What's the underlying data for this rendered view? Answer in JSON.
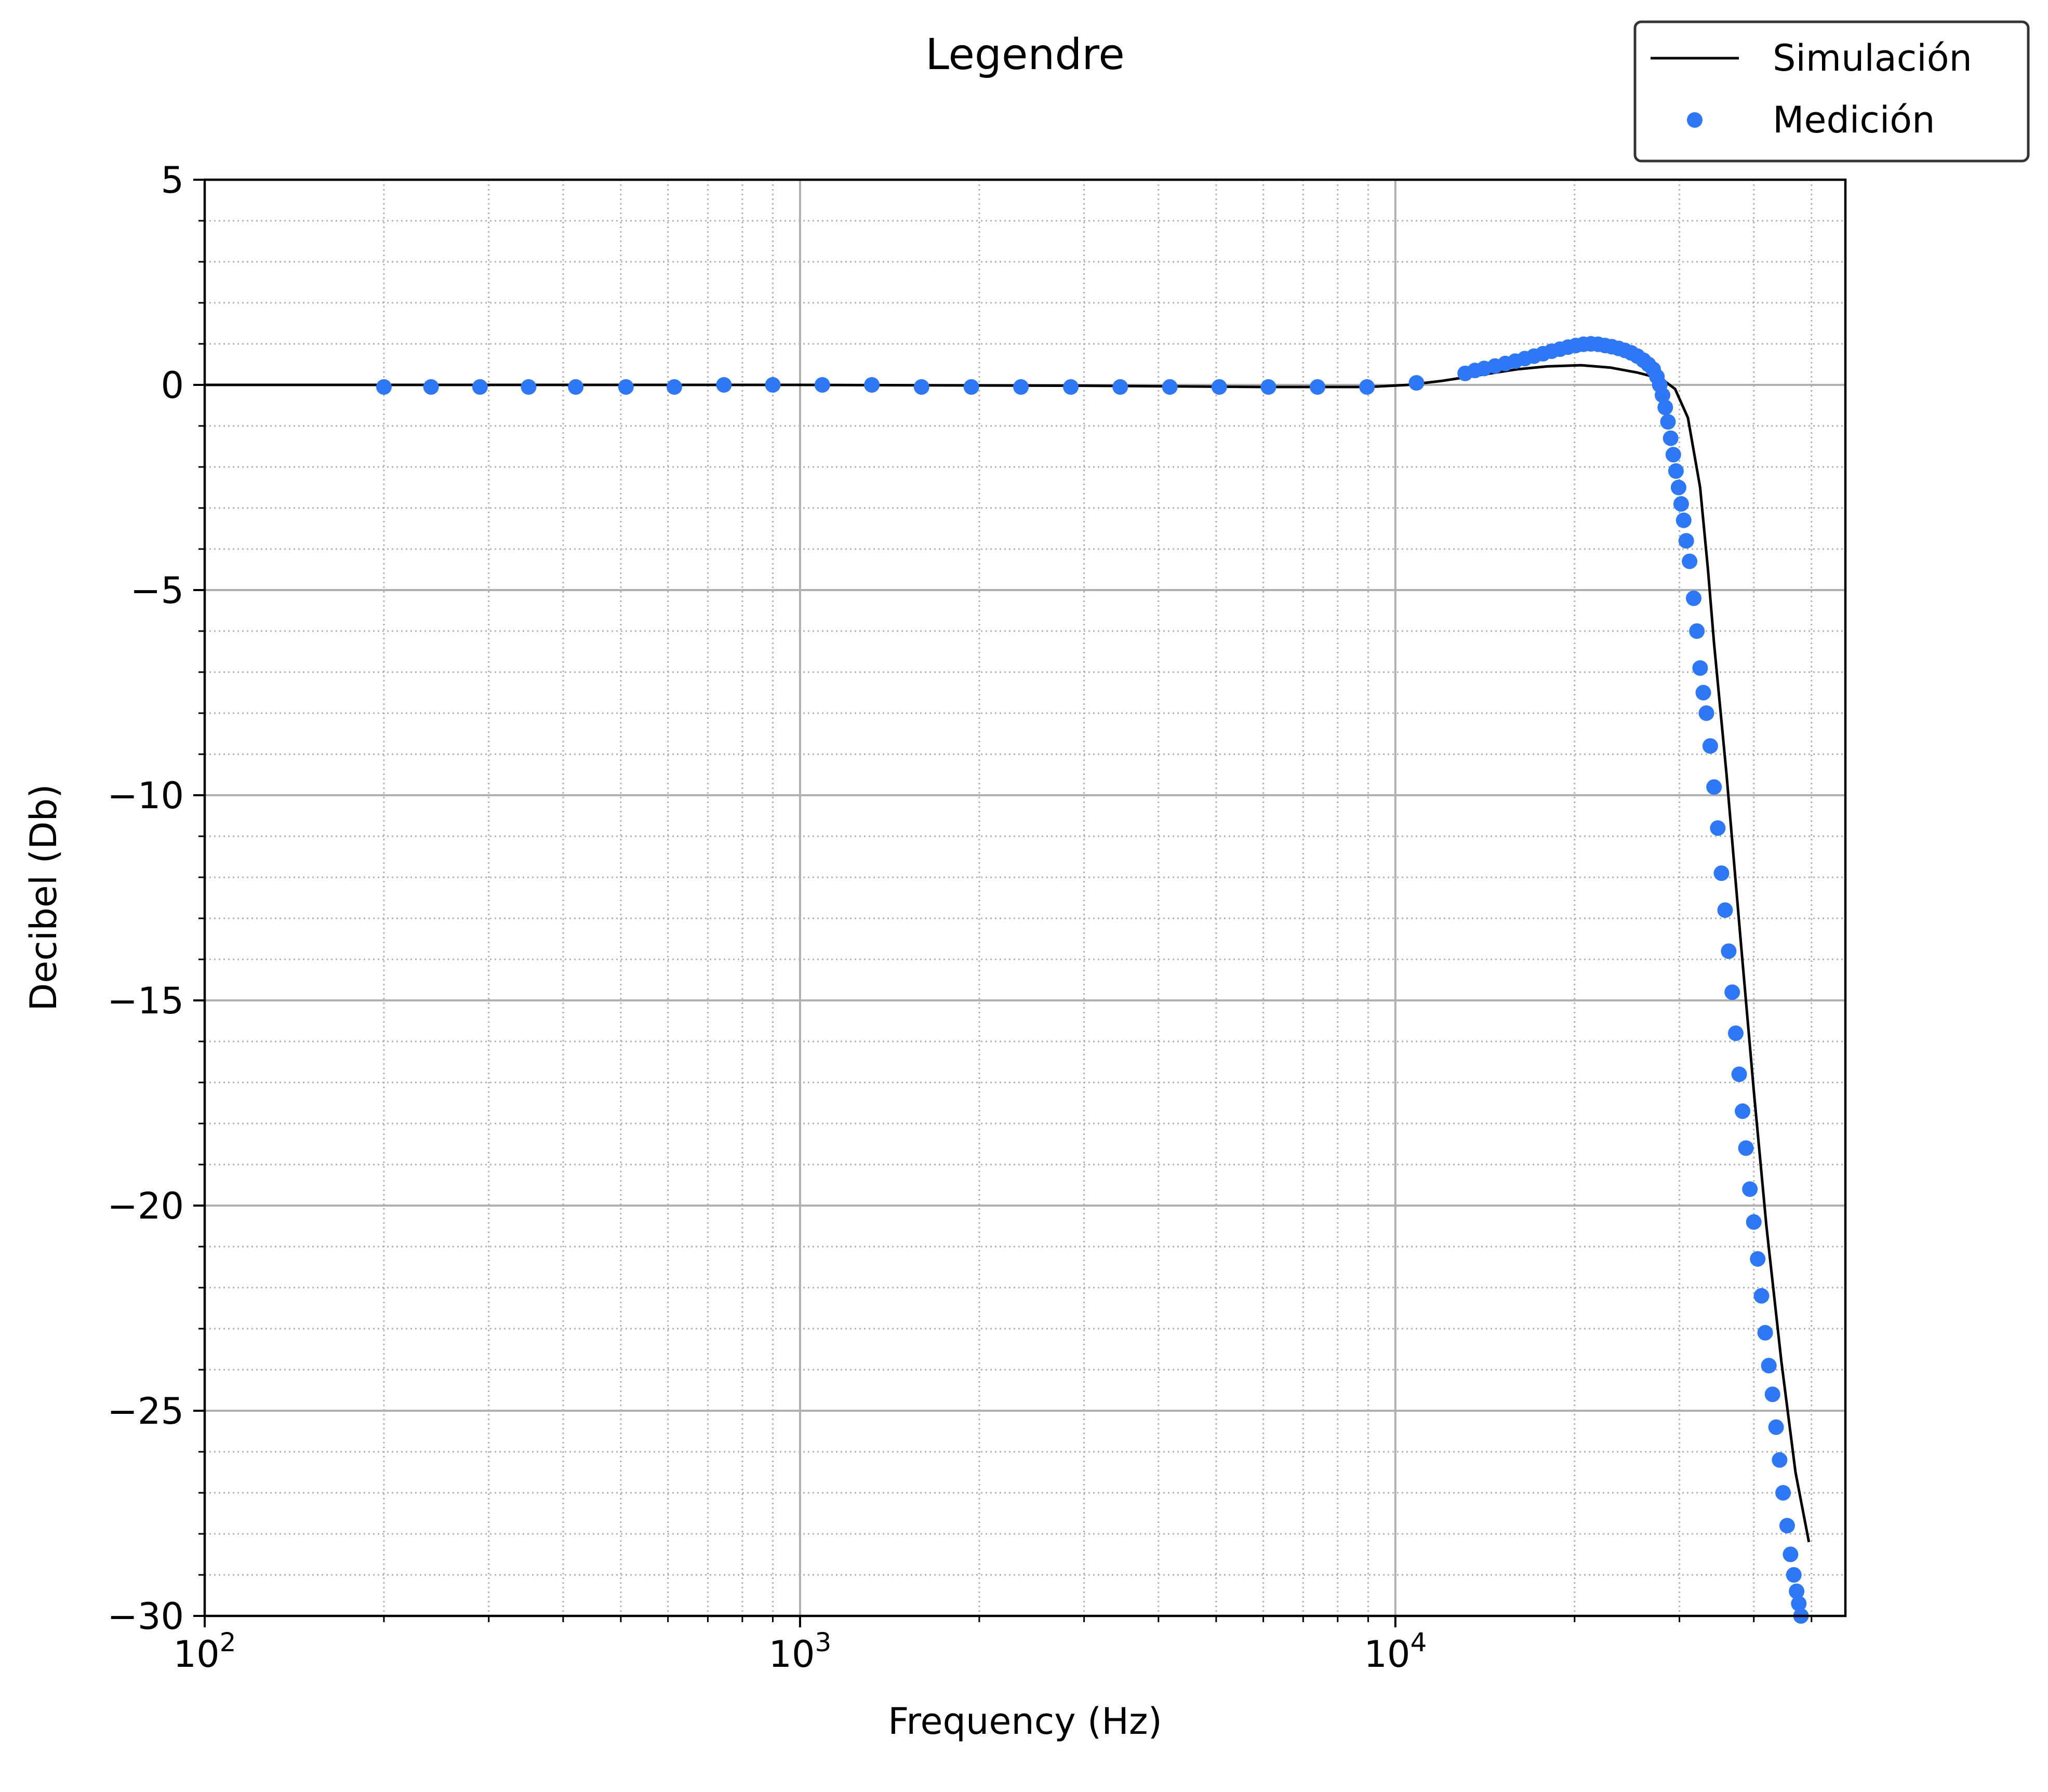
{
  "chart_data": {
    "type": "line",
    "title": "Legendre",
    "xlabel": "Frequency (Hz)",
    "ylabel": "Decibel (Db)",
    "xscale": "log",
    "xlim": [
      100,
      57000
    ],
    "ylim": [
      -30,
      5
    ],
    "grid": "major and minor",
    "legend_position": "top-right",
    "x_ticks": [
      {
        "value": 100,
        "base": "10",
        "exp": "2"
      },
      {
        "value": 1000,
        "base": "10",
        "exp": "3"
      },
      {
        "value": 10000,
        "base": "10",
        "exp": "4"
      }
    ],
    "y_ticks": [
      {
        "value": 5,
        "label": "5"
      },
      {
        "value": 0,
        "label": "0"
      },
      {
        "value": -5,
        "label": "−5"
      },
      {
        "value": -10,
        "label": "−10"
      },
      {
        "value": -15,
        "label": "−15"
      },
      {
        "value": -20,
        "label": "−20"
      },
      {
        "value": -25,
        "label": "−25"
      },
      {
        "value": -30,
        "label": "−30"
      }
    ],
    "series": [
      {
        "name": "Simulación",
        "style": "line",
        "color": "#000000",
        "points": [
          [
            100,
            0
          ],
          [
            1000,
            0
          ],
          [
            3000,
            -0.02
          ],
          [
            6000,
            -0.05
          ],
          [
            9000,
            -0.05
          ],
          [
            10500,
            0.0
          ],
          [
            12000,
            0.1
          ],
          [
            14000,
            0.25
          ],
          [
            16000,
            0.38
          ],
          [
            18000,
            0.45
          ],
          [
            20500,
            0.48
          ],
          [
            23000,
            0.42
          ],
          [
            25500,
            0.3
          ],
          [
            28000,
            0.15
          ],
          [
            29500,
            -0.1
          ],
          [
            31000,
            -0.8
          ],
          [
            32500,
            -2.5
          ],
          [
            33500,
            -4.5
          ],
          [
            34300,
            -6.3
          ],
          [
            36000,
            -9.5
          ],
          [
            38000,
            -13.5
          ],
          [
            40000,
            -17.2
          ],
          [
            42000,
            -20.5
          ],
          [
            44500,
            -23.8
          ],
          [
            47000,
            -26.5
          ],
          [
            49500,
            -28.2
          ]
        ]
      },
      {
        "name": "Medición",
        "style": "markers",
        "color": "#2e77f5",
        "points": [
          [
            200,
            -0.05
          ],
          [
            240,
            -0.05
          ],
          [
            290,
            -0.05
          ],
          [
            350,
            -0.05
          ],
          [
            420,
            -0.05
          ],
          [
            510,
            -0.05
          ],
          [
            615,
            -0.05
          ],
          [
            745,
            0.0
          ],
          [
            900,
            0.0
          ],
          [
            1090,
            0.0
          ],
          [
            1320,
            0.0
          ],
          [
            1600,
            -0.05
          ],
          [
            1940,
            -0.05
          ],
          [
            2350,
            -0.05
          ],
          [
            2850,
            -0.05
          ],
          [
            3450,
            -0.05
          ],
          [
            4180,
            -0.05
          ],
          [
            5060,
            -0.05
          ],
          [
            6120,
            -0.05
          ],
          [
            7400,
            -0.05
          ],
          [
            8960,
            -0.05
          ],
          [
            10850,
            0.05
          ],
          [
            13100,
            0.28
          ],
          [
            13600,
            0.35
          ],
          [
            14100,
            0.4
          ],
          [
            14700,
            0.46
          ],
          [
            15300,
            0.52
          ],
          [
            15900,
            0.58
          ],
          [
            16500,
            0.64
          ],
          [
            17100,
            0.7
          ],
          [
            17700,
            0.76
          ],
          [
            18300,
            0.82
          ],
          [
            18900,
            0.87
          ],
          [
            19500,
            0.92
          ],
          [
            20100,
            0.96
          ],
          [
            20700,
            0.99
          ],
          [
            21300,
            1.0
          ],
          [
            21900,
            0.99
          ],
          [
            22500,
            0.96
          ],
          [
            23100,
            0.93
          ],
          [
            23700,
            0.89
          ],
          [
            24300,
            0.84
          ],
          [
            24900,
            0.78
          ],
          [
            25500,
            0.7
          ],
          [
            26100,
            0.6
          ],
          [
            26600,
            0.5
          ],
          [
            27100,
            0.38
          ],
          [
            27500,
            0.2
          ],
          [
            27800,
            0.0
          ],
          [
            28100,
            -0.25
          ],
          [
            28400,
            -0.55
          ],
          [
            28700,
            -0.9
          ],
          [
            29000,
            -1.3
          ],
          [
            29300,
            -1.7
          ],
          [
            29600,
            -2.1
          ],
          [
            29900,
            -2.5
          ],
          [
            30200,
            -2.9
          ],
          [
            30500,
            -3.3
          ],
          [
            30800,
            -3.8
          ],
          [
            31200,
            -4.3
          ],
          [
            31700,
            -5.2
          ],
          [
            32100,
            -6.0
          ],
          [
            32500,
            -6.9
          ],
          [
            32900,
            -7.5
          ],
          [
            33300,
            -8.0
          ],
          [
            33800,
            -8.8
          ],
          [
            34300,
            -9.8
          ],
          [
            34800,
            -10.8
          ],
          [
            35300,
            -11.9
          ],
          [
            35800,
            -12.8
          ],
          [
            36300,
            -13.8
          ],
          [
            36800,
            -14.8
          ],
          [
            37300,
            -15.8
          ],
          [
            37800,
            -16.8
          ],
          [
            38300,
            -17.7
          ],
          [
            38800,
            -18.6
          ],
          [
            39400,
            -19.6
          ],
          [
            40000,
            -20.4
          ],
          [
            40600,
            -21.3
          ],
          [
            41200,
            -22.2
          ],
          [
            41800,
            -23.1
          ],
          [
            42400,
            -23.9
          ],
          [
            43000,
            -24.6
          ],
          [
            43600,
            -25.4
          ],
          [
            44200,
            -26.2
          ],
          [
            44800,
            -27.0
          ],
          [
            45500,
            -27.8
          ],
          [
            46100,
            -28.5
          ],
          [
            46700,
            -29.0
          ],
          [
            47200,
            -29.4
          ],
          [
            47600,
            -29.7
          ],
          [
            48000,
            -30.0
          ]
        ]
      }
    ]
  }
}
